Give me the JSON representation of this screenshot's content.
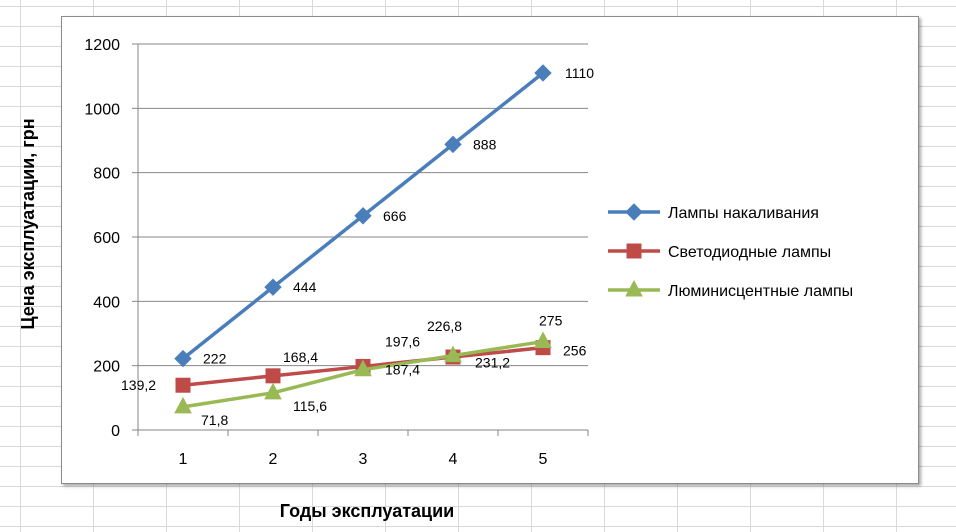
{
  "chart_data": {
    "type": "line",
    "title": "",
    "xlabel": "Годы эксплуатации",
    "ylabel": "Цена  эксплуатации, грн",
    "categories": [
      "1",
      "2",
      "3",
      "4",
      "5"
    ],
    "ylim": [
      0,
      1200
    ],
    "yticks": [
      "0",
      "200",
      "400",
      "600",
      "800",
      "1000",
      "1200"
    ],
    "grid": "horizontal",
    "legend": "right",
    "series": [
      {
        "name": "Лампы накаливания",
        "color": "#4a7ebb",
        "marker": "diamond",
        "values": [
          222,
          444,
          666,
          888,
          1110
        ],
        "labels": [
          "222",
          "444",
          "666",
          "888",
          "1110"
        ]
      },
      {
        "name": "Светодиодные  лампы",
        "color": "#be4b48",
        "marker": "square",
        "values": [
          139.2,
          168.4,
          197.6,
          226.8,
          256
        ],
        "labels": [
          "139,2",
          "168,4",
          "197,6",
          "226,8",
          "256"
        ]
      },
      {
        "name": "Люминисцентные  лампы",
        "color": "#98b954",
        "marker": "triangle",
        "values": [
          71.8,
          115.6,
          187.4,
          231.2,
          275
        ],
        "labels": [
          "71,8",
          "115,6",
          "187,4",
          "231,2",
          "275"
        ]
      }
    ]
  }
}
